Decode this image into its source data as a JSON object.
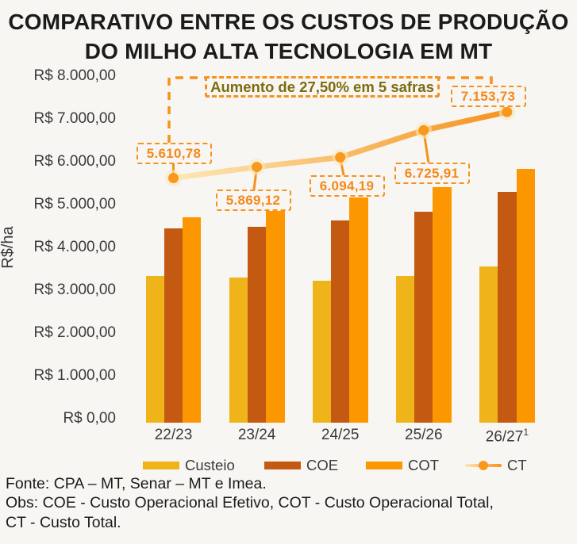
{
  "title": {
    "line1": "COMPARATIVO ENTRE OS CUSTOS DE PRODUÇÃO",
    "line2": "DO MILHO ALTA TECNOLOGIA EM MT"
  },
  "chart_data": {
    "type": "bar",
    "subtype": "grouped bars with overlay line",
    "categories": [
      {
        "label": "22/23",
        "sup": ""
      },
      {
        "label": "23/24",
        "sup": ""
      },
      {
        "label": "24/25",
        "sup": ""
      },
      {
        "label": "25/26",
        "sup": ""
      },
      {
        "label": "26/27",
        "sup": "1"
      }
    ],
    "series": [
      {
        "name": "Custeio",
        "type": "bar",
        "color": "#F0B41B",
        "values": [
          3320,
          3280,
          3210,
          3320,
          3550
        ],
        "values_note": "estimated from axis"
      },
      {
        "name": "COE",
        "type": "bar",
        "color": "#C45A12",
        "values": [
          4440,
          4480,
          4620,
          4820,
          5280
        ],
        "values_note": "estimated from axis"
      },
      {
        "name": "COT",
        "type": "bar",
        "color": "#FC9701",
        "values": [
          4700,
          4890,
          5160,
          5400,
          5830
        ],
        "values_note": "estimated from axis"
      },
      {
        "name": "CT",
        "type": "line",
        "color_start": "#FCE8B8",
        "color_end": "#F6921E",
        "point_color": "#F8981D",
        "values": [
          5610.78,
          5869.12,
          6094.19,
          6725.91,
          7153.73
        ],
        "point_labels": [
          "5.610,78",
          "5.869,12",
          "6.094,19",
          "6.725,91",
          "7.153,73"
        ]
      }
    ],
    "ylabel": "R$/ha",
    "xlabel": "",
    "ylim": [
      0,
      8000
    ],
    "yticks": [
      "R$ 8.000,00",
      "R$ 7.000,00",
      "R$ 6.000,00",
      "R$ 5.000,00",
      "R$ 4.000,00",
      "R$ 3.000,00",
      "R$ 2.000,00",
      "R$ 1.000,00",
      "R$ 0,00"
    ],
    "grid": "off",
    "legend_position": "bottom",
    "annotation": "Aumento de 27,50% em 5 safras"
  },
  "footer": {
    "fonte": "Fonte: CPA – MT, Senar – MT e Imea.",
    "obs": "Obs: COE - Custo Operacional Efetivo, COT - Custo Operacional Total, CT - Custo Total."
  },
  "colors": {
    "background": "#F7F6F3",
    "title_text": "#1B1B1B",
    "axis_text": "#3A3A3A",
    "accent_orange_dashed": "#F5921E",
    "label_text_orange": "#F5881B",
    "annotation_text": "#7D6B10"
  }
}
